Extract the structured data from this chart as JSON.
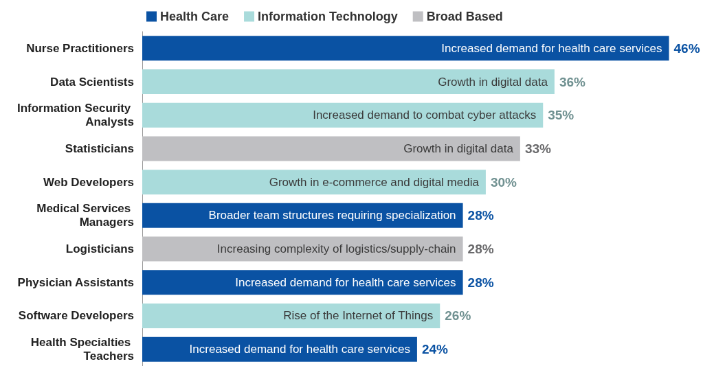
{
  "chart_data": {
    "type": "bar",
    "orientation": "horizontal",
    "stacked": true,
    "legend": "top",
    "categories": [
      "Nurse Practitioners",
      "Data Scientists",
      "Information Security Analysts",
      "Statisticians",
      "Web Developers",
      "Medical Services Managers",
      "Logisticians",
      "Physician Assistants",
      "Software Developers",
      "Health Specialties Teachers"
    ],
    "series": [
      {
        "name": "Health Care",
        "color": "#0a52a3",
        "values": [
          46,
          null,
          null,
          null,
          null,
          28,
          null,
          28,
          null,
          24
        ],
        "value_labels": [
          "46%",
          null,
          null,
          null,
          null,
          "28%",
          null,
          "28%",
          null,
          "24%"
        ]
      },
      {
        "name": "Information Technology",
        "color": "#a9dbdb",
        "values": [
          null,
          36,
          35,
          null,
          30,
          null,
          null,
          null,
          26,
          null
        ],
        "value_labels": [
          null,
          "36%",
          "35%",
          null,
          "30%",
          null,
          null,
          null,
          "26%",
          null
        ]
      },
      {
        "name": "Broad Based",
        "color": "#bfbfc2",
        "values": [
          null,
          null,
          null,
          33,
          null,
          null,
          28,
          null,
          null,
          null
        ],
        "value_labels": [
          null,
          null,
          null,
          "33%",
          null,
          null,
          "28%",
          null,
          null,
          null
        ]
      }
    ],
    "annotations": [
      {
        "text": "Increased demand for health care services",
        "x": 46,
        "y": "Nurse Practitioners"
      },
      {
        "text": "Growth in digital data",
        "x": 36,
        "y": "Data Scientists"
      },
      {
        "text": "Increased demand to combat cyber attacks",
        "x": 35,
        "y": "Information Security Analysts"
      },
      {
        "text": "Growth in digital data",
        "x": 33,
        "y": "Statisticians"
      },
      {
        "text": "Growth in e-commerce and digital media",
        "x": 30,
        "y": "Web Developers"
      },
      {
        "text": "Broader team structures requiring specialization",
        "x": 28,
        "y": "Medical Services Managers"
      },
      {
        "text": "Increasing complexity of logistics/supply-chain",
        "x": 28,
        "y": "Logisticians"
      },
      {
        "text": "Increased demand for health care services",
        "x": 28,
        "y": "Physician Assistants"
      },
      {
        "text": "Rise of the Internet of Things",
        "x": 26,
        "y": "Software Developers"
      },
      {
        "text": "Increased demand for health care services",
        "x": 24,
        "y": "Health Specialties Teachers"
      }
    ]
  }
}
